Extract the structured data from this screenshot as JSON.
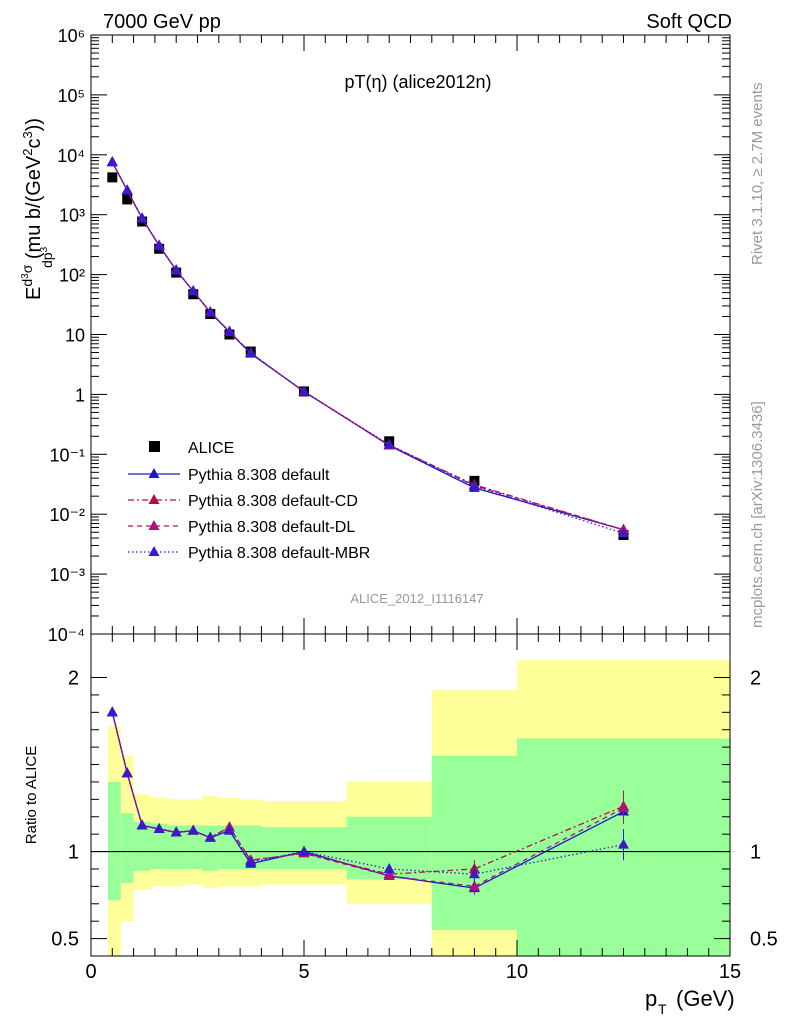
{
  "header": {
    "energy_label": "7000 GeV pp",
    "category_label": "Soft QCD",
    "plot_title": "pT(η) (alice2012n)",
    "analysis_id": "ALICE_2012_I1116147",
    "rivet_label": "Rivet 3.1.10, ≥ 2.7M events",
    "source_label": "mcplots.cern.ch [arXiv:1306.3436]"
  },
  "colors": {
    "data": "#000000",
    "default": "#1a1acc",
    "cd": "#b0104a",
    "dl": "#b0107a",
    "mbr": "#3a1acc",
    "band_outer": "#ffff99",
    "band_inner": "#99ff99"
  },
  "chart_data": [
    {
      "type": "scatter",
      "panel": "main",
      "ylabel": "E d³σ / dp³ (mu b/(GeV²c³))",
      "xlim": [
        0,
        15
      ],
      "ylim": [
        0.0001,
        1000000
      ],
      "y_scale": "log",
      "y_ticks": [
        "10⁻⁴",
        "10⁻³",
        "10⁻²",
        "10⁻¹",
        "1",
        "10",
        "10²",
        "10³",
        "10⁴",
        "10⁵",
        "10⁶"
      ],
      "legend_position": "lower-left",
      "x": [
        0.5,
        0.85,
        1.2,
        1.6,
        2.0,
        2.4,
        2.8,
        3.25,
        3.75,
        5.0,
        7.0,
        9.0,
        12.5
      ],
      "series": [
        {
          "name": "ALICE",
          "style": "marker",
          "values": [
            4200,
            1800,
            770,
            270,
            108,
            47,
            22,
            10,
            5.2,
            1.12,
            0.165,
            0.036,
            0.0045
          ]
        },
        {
          "name": "Pythia 8.308 default",
          "style": "solid",
          "values": [
            7500,
            2550,
            870,
            305,
            118,
            53,
            23.5,
            11,
            4.8,
            1.12,
            0.14,
            0.0275,
            0.0055
          ]
        },
        {
          "name": "Pythia 8.308 default-CD",
          "style": "dashdot",
          "values": [
            7600,
            2550,
            870,
            305,
            118,
            53,
            23.5,
            11.2,
            4.9,
            1.11,
            0.142,
            0.031,
            0.0055
          ]
        },
        {
          "name": "Pythia 8.308 default-DL",
          "style": "dashed",
          "values": [
            7600,
            2550,
            870,
            305,
            118,
            53,
            23.5,
            11.2,
            4.9,
            1.11,
            0.142,
            0.03,
            0.0055
          ]
        },
        {
          "name": "Pythia 8.308 default-MBR",
          "style": "dotted",
          "values": [
            7500,
            2550,
            870,
            305,
            118,
            53,
            23.5,
            11,
            4.9,
            1.11,
            0.145,
            0.0295,
            0.0048
          ]
        }
      ]
    },
    {
      "type": "line",
      "panel": "ratio",
      "ylabel": "Ratio to ALICE",
      "xlabel": "p_T (GeV)",
      "xlim": [
        0,
        15
      ],
      "ylim": [
        0.4,
        2.25
      ],
      "y_ticks": [
        0.5,
        1,
        2
      ],
      "x_ticks": [
        0,
        5,
        10,
        15
      ],
      "bands": [
        {
          "x_low": 0.4,
          "x_high": 0.7,
          "outer": [
            0.35,
            1.72
          ],
          "inner": [
            0.72,
            1.4
          ]
        },
        {
          "x_low": 0.7,
          "x_high": 1.0,
          "outer": [
            0.6,
            1.55
          ],
          "inner": [
            0.82,
            1.22
          ]
        },
        {
          "x_low": 1.0,
          "x_high": 1.4,
          "outer": [
            0.78,
            1.33
          ],
          "inner": [
            0.89,
            1.17
          ]
        },
        {
          "x_low": 1.4,
          "x_high": 1.8,
          "outer": [
            0.8,
            1.31
          ],
          "inner": [
            0.9,
            1.16
          ]
        },
        {
          "x_low": 1.8,
          "x_high": 2.2,
          "outer": [
            0.8,
            1.3
          ],
          "inner": [
            0.9,
            1.15
          ]
        },
        {
          "x_low": 2.2,
          "x_high": 2.6,
          "outer": [
            0.81,
            1.3
          ],
          "inner": [
            0.9,
            1.15
          ]
        },
        {
          "x_low": 2.6,
          "x_high": 3.0,
          "outer": [
            0.79,
            1.32
          ],
          "inner": [
            0.89,
            1.15
          ]
        },
        {
          "x_low": 3.0,
          "x_high": 3.5,
          "outer": [
            0.8,
            1.31
          ],
          "inner": [
            0.9,
            1.15
          ]
        },
        {
          "x_low": 3.5,
          "x_high": 4.0,
          "outer": [
            0.8,
            1.3
          ],
          "inner": [
            0.9,
            1.15
          ]
        },
        {
          "x_low": 4.0,
          "x_high": 6.0,
          "outer": [
            0.81,
            1.29
          ],
          "inner": [
            0.9,
            1.14
          ]
        },
        {
          "x_low": 6.0,
          "x_high": 8.0,
          "outer": [
            0.7,
            1.4
          ],
          "inner": [
            0.84,
            1.2
          ]
        },
        {
          "x_low": 8.0,
          "x_high": 10.0,
          "outer": [
            0.38,
            1.93
          ],
          "inner": [
            0.55,
            1.55
          ]
        },
        {
          "x_low": 10.0,
          "x_high": 15.0,
          "outer": [
            0.38,
            2.1
          ],
          "inner": [
            0.39,
            1.65
          ]
        }
      ],
      "x": [
        0.5,
        0.85,
        1.2,
        1.6,
        2.0,
        2.4,
        2.8,
        3.25,
        3.75,
        5.0,
        7.0,
        9.0,
        12.5
      ],
      "series": [
        {
          "name": "Pythia 8.308 default",
          "style": "solid",
          "values": [
            1.8,
            1.45,
            1.15,
            1.13,
            1.11,
            1.12,
            1.08,
            1.12,
            0.93,
            1.0,
            0.86,
            0.79,
            1.23
          ]
        },
        {
          "name": "Pythia 8.308 default-CD",
          "style": "dashdot",
          "values": [
            1.8,
            1.45,
            1.15,
            1.13,
            1.11,
            1.12,
            1.08,
            1.14,
            0.95,
            0.99,
            0.87,
            0.9,
            1.26
          ],
          "errors": [
            0.02,
            0.02,
            0.01,
            0.01,
            0.01,
            0.01,
            0.01,
            0.01,
            0.01,
            0.01,
            0.02,
            0.05,
            0.09
          ]
        },
        {
          "name": "Pythia 8.308 default-DL",
          "style": "dashed",
          "values": [
            1.8,
            1.45,
            1.15,
            1.13,
            1.11,
            1.12,
            1.08,
            1.14,
            0.95,
            0.99,
            0.86,
            0.8,
            1.25
          ],
          "errors": [
            0.02,
            0.02,
            0.01,
            0.01,
            0.01,
            0.01,
            0.01,
            0.01,
            0.01,
            0.01,
            0.02,
            0.05,
            0.09
          ]
        },
        {
          "name": "Pythia 8.308 default-MBR",
          "style": "dotted",
          "values": [
            1.8,
            1.45,
            1.15,
            1.13,
            1.11,
            1.12,
            1.08,
            1.12,
            0.94,
            1.0,
            0.9,
            0.87,
            1.04
          ],
          "errors": [
            0.02,
            0.02,
            0.01,
            0.01,
            0.01,
            0.01,
            0.01,
            0.01,
            0.01,
            0.01,
            0.02,
            0.05,
            0.09
          ]
        }
      ]
    }
  ]
}
